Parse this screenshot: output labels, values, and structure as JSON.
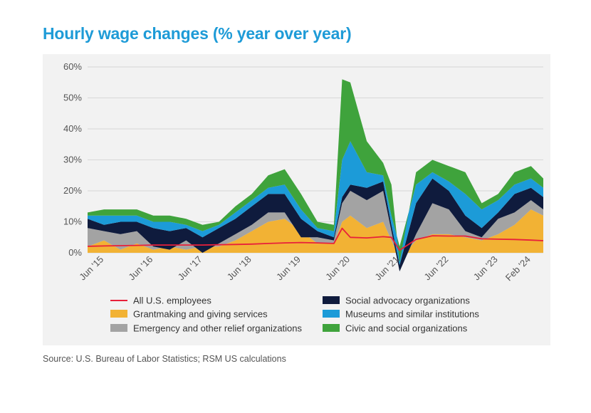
{
  "title": "Hourly wage changes (% year over year)",
  "source": "Source: U.S. Bureau of Labor Statistics; RSM US calculations",
  "colors": {
    "title": "#1E9BD7",
    "all_employees": "#E8203A",
    "grantmaking": "#F2B234",
    "emergency": "#A3A3A3",
    "social_advocacy": "#0F1B3D",
    "museums": "#1C9BD8",
    "civic_social": "#3FA33C",
    "grid": "#d7d7d7",
    "panel": "#f2f2f2"
  },
  "chart_data": {
    "type": "area",
    "title": "Hourly wage changes (% year over year)",
    "ylim": [
      0,
      60
    ],
    "y_ticks": [
      "0%",
      "10%",
      "20%",
      "30%",
      "40%",
      "50%",
      "60%"
    ],
    "y_tick_values": [
      0,
      10,
      20,
      30,
      40,
      50,
      60
    ],
    "x_ticks": [
      "Jun '15",
      "Jun '16",
      "Jun '17",
      "Jun '18",
      "Jun '19",
      "Jun '20",
      "Jun '21",
      "Jun '22",
      "Jun '23",
      "Feb '24"
    ],
    "x_tick_dates": [
      "2015-06",
      "2016-06",
      "2017-06",
      "2018-06",
      "2019-06",
      "2020-06",
      "2021-06",
      "2022-06",
      "2023-06",
      "2024-02"
    ],
    "grid": true,
    "legend_position": "bottom",
    "x": [
      "2015-02",
      "2015-06",
      "2015-10",
      "2016-02",
      "2016-06",
      "2016-10",
      "2017-02",
      "2017-06",
      "2017-10",
      "2018-02",
      "2018-06",
      "2018-10",
      "2019-02",
      "2019-06",
      "2019-10",
      "2020-02",
      "2020-04",
      "2020-06",
      "2020-10",
      "2021-02",
      "2021-04",
      "2021-06",
      "2021-10",
      "2022-02",
      "2022-06",
      "2022-10",
      "2023-02",
      "2023-06",
      "2023-10",
      "2024-02",
      "2024-05"
    ],
    "series": [
      {
        "name": "Grantmaking and giving services",
        "kind": "area",
        "values": [
          2,
          4,
          1,
          3,
          1,
          2,
          1,
          2,
          2,
          4,
          7,
          10,
          11,
          7,
          3,
          3,
          10,
          12,
          8,
          10,
          4,
          -2,
          4,
          6,
          6,
          5,
          4,
          6,
          9,
          14,
          12
        ]
      },
      {
        "name": "Emergency and other relief organizations",
        "kind": "area",
        "values": [
          6,
          3,
          5,
          4,
          1,
          -1,
          3,
          -2,
          1,
          2,
          2,
          3,
          2,
          -2,
          2,
          1,
          6,
          8,
          9,
          10,
          3,
          -4,
          2,
          10,
          8,
          2,
          1,
          5,
          4,
          3,
          2
        ]
      },
      {
        "name": "Social advocacy organizations",
        "kind": "area",
        "values": [
          3,
          2,
          4,
          3,
          6,
          6,
          4,
          5,
          5,
          5,
          6,
          6,
          6,
          6,
          2,
          1,
          2,
          2,
          4,
          3,
          2,
          2,
          10,
          8,
          6,
          5,
          3,
          2,
          6,
          4,
          4
        ]
      },
      {
        "name": "Museums and similar institutions",
        "kind": "area",
        "values": [
          1,
          3,
          2,
          2,
          2,
          3,
          1,
          2,
          1,
          2,
          2,
          2,
          3,
          3,
          1,
          2,
          12,
          14,
          5,
          2,
          3,
          6,
          6,
          2,
          3,
          7,
          6,
          4,
          3,
          3,
          3
        ]
      },
      {
        "name": "Civic and social organizations",
        "kind": "area",
        "values": [
          1,
          2,
          2,
          2,
          2,
          2,
          2,
          2,
          1,
          2,
          2,
          4,
          5,
          5,
          2,
          2,
          26,
          19,
          10,
          4,
          10,
          -5,
          4,
          4,
          5,
          7,
          2,
          2,
          4,
          4,
          3
        ]
      },
      {
        "name": "All U.S. employees",
        "kind": "line",
        "values": [
          2.1,
          2.2,
          2.3,
          2.4,
          2.5,
          2.5,
          2.5,
          2.5,
          2.6,
          2.7,
          2.8,
          3.0,
          3.2,
          3.3,
          3.2,
          3.0,
          7.9,
          5.0,
          4.8,
          5.2,
          5.0,
          0.8,
          4.3,
          5.5,
          5.4,
          5.4,
          4.5,
          4.4,
          4.3,
          4.1,
          3.9
        ]
      }
    ]
  },
  "legend": [
    {
      "label": "All U.S. employees",
      "key": "all_employees",
      "kind": "line"
    },
    {
      "label": "Social advocacy organizations",
      "key": "social_advocacy",
      "kind": "box"
    },
    {
      "label": "Grantmaking and giving services",
      "key": "grantmaking",
      "kind": "box"
    },
    {
      "label": "Museums and similar institutions",
      "key": "museums",
      "kind": "box"
    },
    {
      "label": "Emergency and other relief organizations",
      "key": "emergency",
      "kind": "box"
    },
    {
      "label": "Civic and social organizations",
      "key": "civic_social",
      "kind": "box"
    }
  ]
}
